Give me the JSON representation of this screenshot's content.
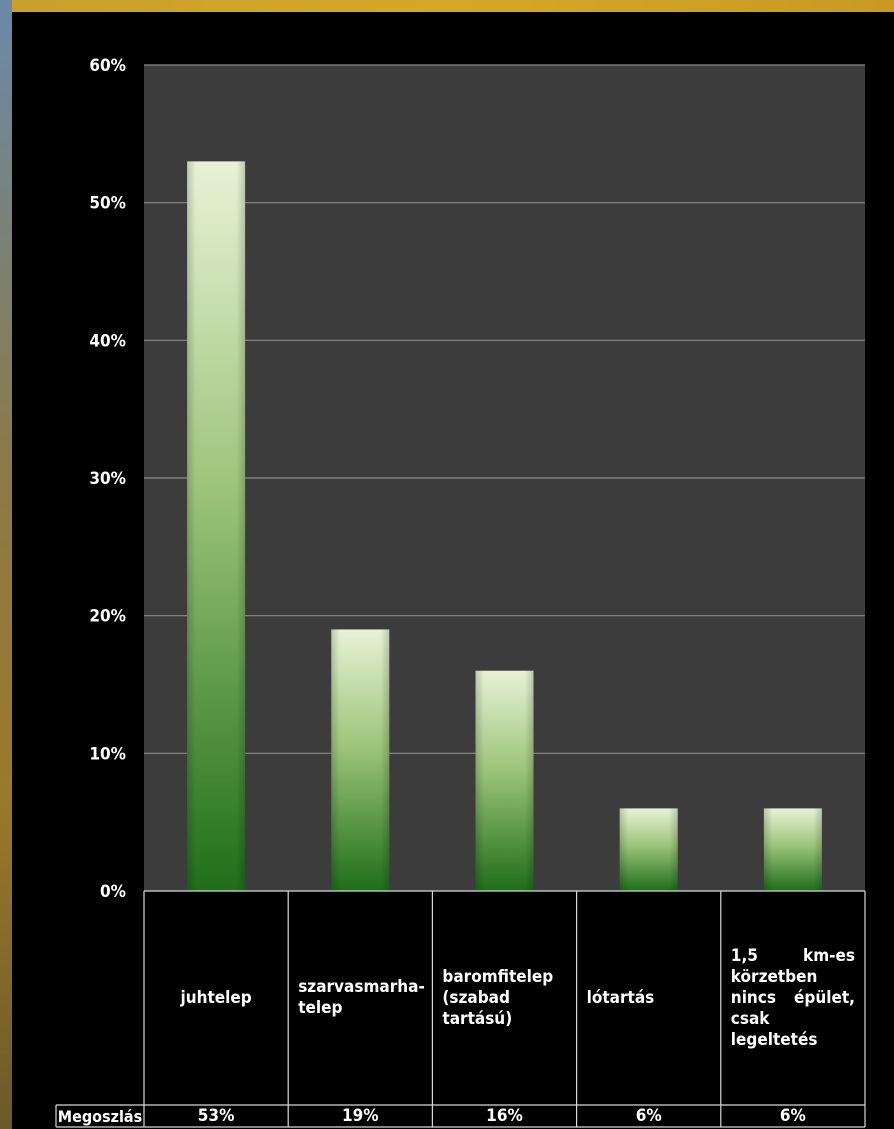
{
  "chart_data": {
    "type": "bar",
    "categories": [
      "juhtelep",
      "szarvasmarha-telep",
      "baromfitelep (szabad tartású)",
      "lótartás",
      "1,5 km-es körzetben nincs épület, csak legeltetés"
    ],
    "series": [
      {
        "name": "Megoszlás",
        "values": [
          53,
          19,
          16,
          6,
          6
        ]
      }
    ],
    "value_labels": [
      "53%",
      "19%",
      "16%",
      "6%",
      "6%"
    ],
    "y_ticks": [
      "0%",
      "10%",
      "20%",
      "30%",
      "40%",
      "50%",
      "60%"
    ],
    "ylim": [
      0,
      60
    ],
    "y_unit": "%",
    "grid": true,
    "legend": "none",
    "data_table": true,
    "table_row_label": "Megoszlás",
    "colors": {
      "background": "#000000",
      "plot_area": "#3c3c3c",
      "gridline": "#8a8a8a",
      "bar_top": "#e8f2d6",
      "bar_bottom": "#1f6e1a",
      "frame": "#c8961e"
    }
  }
}
